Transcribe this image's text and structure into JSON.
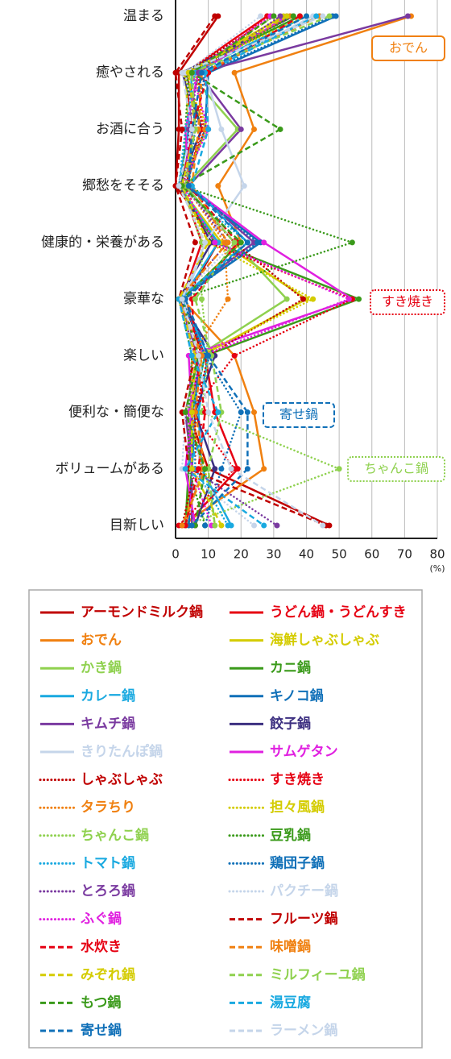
{
  "chart_data": {
    "type": "line",
    "categories": [
      "温まる",
      "癒やされる",
      "お酒に合う",
      "郷愁をそそる",
      "健康的・栄養がある",
      "豪華な",
      "楽しい",
      "便利な・簡便な",
      "ボリュームがある",
      "目新しい"
    ],
    "xlim": [
      0,
      80
    ],
    "xticks": [
      0,
      10,
      20,
      30,
      40,
      50,
      60,
      70,
      80
    ],
    "x_unit": "(%)",
    "grid": true,
    "annotations": [
      {
        "text": "おでん",
        "color": "#f08010",
        "style": "solid"
      },
      {
        "text": "すき焼き",
        "color": "#e60012",
        "style": "dotted"
      },
      {
        "text": "寄せ鍋",
        "color": "#1070b8",
        "style": "dashed"
      },
      {
        "text": "ちゃんこ鍋",
        "color": "#8fd14f",
        "style": "dotted"
      }
    ],
    "series": [
      {
        "name": "アーモンドミルク鍋",
        "color": "#c00000",
        "style": "solid",
        "values": [
          13,
          1,
          1,
          0,
          13,
          3,
          8,
          4,
          10,
          47
        ]
      },
      {
        "name": "うどん鍋・うどんすき",
        "color": "#e60012",
        "style": "solid",
        "values": [
          28,
          3,
          5,
          2,
          8,
          2,
          9,
          12,
          19,
          3
        ]
      },
      {
        "name": "おでん",
        "color": "#f08010",
        "style": "solid",
        "values": [
          72,
          18,
          24,
          13,
          20,
          2,
          18,
          24,
          27,
          2
        ]
      },
      {
        "name": "海鮮しゃぶしゃぶ",
        "color": "#d4cc00",
        "style": "solid",
        "values": [
          33,
          3,
          4,
          1,
          14,
          40,
          8,
          5,
          5,
          3
        ]
      },
      {
        "name": "かき鍋",
        "color": "#8fd14f",
        "style": "solid",
        "values": [
          35,
          4,
          19,
          3,
          18,
          34,
          7,
          4,
          5,
          4
        ]
      },
      {
        "name": "カニ鍋",
        "color": "#3a9a1a",
        "style": "solid",
        "values": [
          38,
          3,
          8,
          1,
          12,
          56,
          9,
          5,
          4,
          3
        ]
      },
      {
        "name": "カレー鍋",
        "color": "#19a9e0",
        "style": "solid",
        "values": [
          40,
          5,
          4,
          1,
          13,
          2,
          10,
          7,
          8,
          17
        ]
      },
      {
        "name": "キノコ鍋",
        "color": "#1070b8",
        "style": "solid",
        "values": [
          49,
          10,
          9,
          3,
          26,
          1,
          7,
          6,
          5,
          4
        ]
      },
      {
        "name": "キムチ鍋",
        "color": "#7a3aa0",
        "style": "solid",
        "values": [
          71,
          7,
          20,
          4,
          24,
          1,
          7,
          3,
          5,
          5
        ]
      },
      {
        "name": "餃子鍋",
        "color": "#3c2f80",
        "style": "solid",
        "values": [
          36,
          2,
          8,
          1,
          11,
          1,
          12,
          6,
          12,
          6
        ]
      },
      {
        "name": "きりたんぽ鍋",
        "color": "#c5d5ea",
        "style": "solid",
        "values": [
          42,
          9,
          14,
          21,
          9,
          3,
          5,
          4,
          8,
          3
        ]
      },
      {
        "name": "サムゲタン",
        "color": "#e020e0",
        "style": "solid",
        "values": [
          34,
          7,
          3,
          4,
          27,
          54,
          4,
          5,
          3,
          6
        ]
      },
      {
        "name": "しゃぶしゃぶ",
        "color": "#c00000",
        "style": "dotted",
        "values": [
          30,
          3,
          9,
          2,
          18,
          39,
          10,
          6,
          6,
          2
        ]
      },
      {
        "name": "すき焼き",
        "color": "#e60012",
        "style": "dotted",
        "values": [
          28,
          7,
          8,
          3,
          10,
          54,
          18,
          5,
          18,
          1
        ]
      },
      {
        "name": "タラちり",
        "color": "#f08010",
        "style": "dotted",
        "values": [
          35,
          6,
          9,
          3,
          15,
          16,
          5,
          5,
          8,
          3
        ]
      },
      {
        "name": "担々風鍋",
        "color": "#d4cc00",
        "style": "dotted",
        "values": [
          40,
          2,
          10,
          1,
          10,
          42,
          7,
          3,
          9,
          12
        ]
      },
      {
        "name": "ちゃんこ鍋",
        "color": "#8fd14f",
        "style": "dotted",
        "values": [
          30,
          5,
          6,
          2,
          8,
          8,
          10,
          8,
          50,
          3
        ]
      },
      {
        "name": "豆乳鍋",
        "color": "#3a9a1a",
        "style": "dotted",
        "values": [
          36,
          4,
          3,
          2,
          54,
          1,
          5,
          4,
          4,
          9
        ]
      },
      {
        "name": "トマト鍋",
        "color": "#19a9e0",
        "style": "dotted",
        "values": [
          44,
          6,
          3,
          1,
          22,
          2,
          9,
          5,
          6,
          16
        ]
      },
      {
        "name": "鶏団子鍋",
        "color": "#1070b8",
        "style": "dotted",
        "values": [
          48,
          9,
          6,
          4,
          25,
          2,
          9,
          20,
          14,
          9
        ]
      },
      {
        "name": "とろろ鍋",
        "color": "#7a3aa0",
        "style": "dotted",
        "values": [
          32,
          7,
          4,
          3,
          16,
          1,
          6,
          5,
          5,
          31
        ]
      },
      {
        "name": "パクチー鍋",
        "color": "#c5d5ea",
        "style": "dotted",
        "values": [
          26,
          3,
          6,
          2,
          18,
          1,
          8,
          3,
          2,
          24
        ]
      },
      {
        "name": "ふぐ鍋",
        "color": "#e020e0",
        "style": "dotted",
        "values": [
          29,
          5,
          10,
          2,
          12,
          53,
          8,
          4,
          5,
          11
        ]
      },
      {
        "name": "フルーツ鍋",
        "color": "#c00000",
        "style": "dashed",
        "values": [
          12,
          0,
          2,
          0,
          6,
          1,
          6,
          2,
          4,
          46
        ]
      },
      {
        "name": "水炊き",
        "color": "#e60012",
        "style": "dashed",
        "values": [
          38,
          10,
          5,
          4,
          19,
          5,
          6,
          9,
          7,
          3
        ]
      },
      {
        "name": "味噌鍋",
        "color": "#f08010",
        "style": "dashed",
        "values": [
          44,
          8,
          7,
          5,
          16,
          1,
          8,
          6,
          9,
          2
        ]
      },
      {
        "name": "みぞれ鍋",
        "color": "#d4cc00",
        "style": "dashed",
        "values": [
          34,
          4,
          6,
          2,
          10,
          1,
          6,
          5,
          5,
          14
        ]
      },
      {
        "name": "ミルフィーユ鍋",
        "color": "#8fd14f",
        "style": "dashed",
        "values": [
          47,
          5,
          6,
          3,
          18,
          6,
          11,
          14,
          10,
          12
        ]
      },
      {
        "name": "もつ鍋",
        "color": "#3a9a1a",
        "style": "dashed",
        "values": [
          30,
          5,
          32,
          2,
          20,
          2,
          7,
          3,
          9,
          6
        ]
      },
      {
        "name": "湯豆腐",
        "color": "#19a9e0",
        "style": "dashed",
        "values": [
          43,
          9,
          10,
          5,
          22,
          1,
          5,
          13,
          3,
          27
        ]
      },
      {
        "name": "寄せ鍋",
        "color": "#1070b8",
        "style": "dashed",
        "values": [
          40,
          8,
          5,
          4,
          22,
          3,
          10,
          22,
          22,
          5
        ]
      },
      {
        "name": "ラーメン鍋",
        "color": "#c5d5ea",
        "style": "dashed",
        "values": [
          45,
          2,
          5,
          1,
          9,
          2,
          7,
          10,
          17,
          45
        ]
      }
    ]
  }
}
